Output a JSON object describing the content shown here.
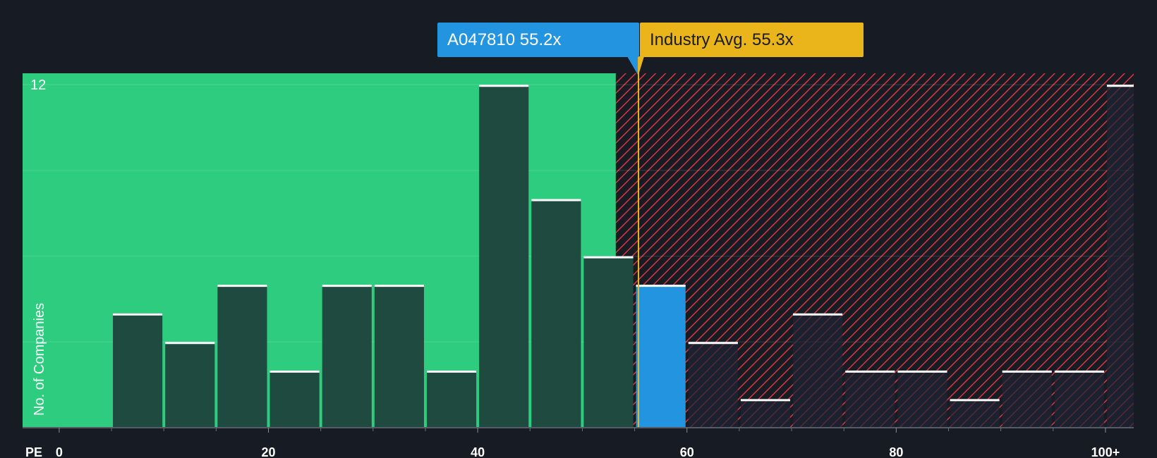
{
  "colors": {
    "background": "#161b24",
    "fair_zone": "#2ecc7e",
    "over_zone_stripe": "#d9373f",
    "bar": "#1f4a3f",
    "company_bar": "#2394e0",
    "industry": "#eab41b"
  },
  "callouts": {
    "company_name": "A047810",
    "company_value": "55.2x",
    "industry_text": "Industry Avg. 55.3x"
  },
  "chart_data": {
    "type": "bar",
    "title": "",
    "xlabel": "PE",
    "ylabel": "No. of Companies",
    "x_ticks": [
      0,
      20,
      40,
      60,
      80,
      100
    ],
    "x_tick_labels": [
      "0",
      "20",
      "40",
      "60",
      "80",
      "100+"
    ],
    "y_tick_labels": [
      "12"
    ],
    "xlim": [
      -3.5,
      102.7
    ],
    "ylim": [
      0,
      12.4
    ],
    "bin_width": 5,
    "bins": [
      {
        "start": 5,
        "count": 4
      },
      {
        "start": 10,
        "count": 3
      },
      {
        "start": 15,
        "count": 5
      },
      {
        "start": 20,
        "count": 2
      },
      {
        "start": 25,
        "count": 5
      },
      {
        "start": 30,
        "count": 5
      },
      {
        "start": 35,
        "count": 2
      },
      {
        "start": 40,
        "count": 12
      },
      {
        "start": 45,
        "count": 8
      },
      {
        "start": 50,
        "count": 6
      },
      {
        "start": 55,
        "count": 5,
        "highlight": true
      },
      {
        "start": 60,
        "count": 3
      },
      {
        "start": 65,
        "count": 1
      },
      {
        "start": 70,
        "count": 4
      },
      {
        "start": 75,
        "count": 2
      },
      {
        "start": 80,
        "count": 2
      },
      {
        "start": 85,
        "count": 1
      },
      {
        "start": 90,
        "count": 2
      },
      {
        "start": 95,
        "count": 2
      },
      {
        "start": 100,
        "count": 12,
        "overflow": true
      }
    ],
    "company_pe": 55.2,
    "industry_avg_pe": 55.3,
    "fair_zone_end": 53.2
  }
}
